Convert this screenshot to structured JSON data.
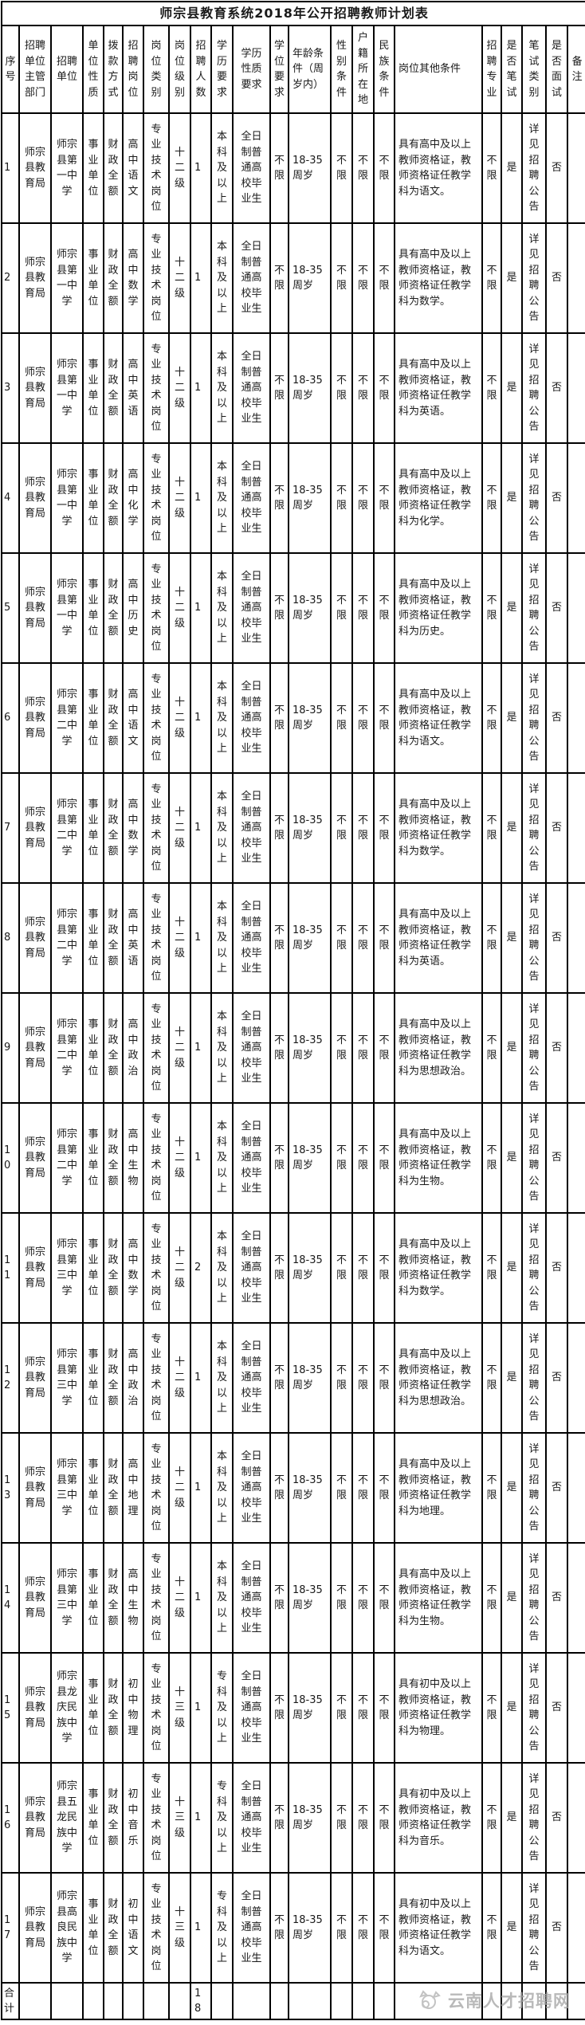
{
  "title": "师宗县教育系统2018年公开招聘教师计划表",
  "columns": [
    "序号",
    "招聘单位主管部门",
    "招聘单位",
    "单位性质",
    "拨款方式",
    "招聘岗位",
    "岗位类别",
    "岗位级别",
    "招聘人数",
    "学历要求",
    "学历性质要求",
    "学位要求",
    "年龄条件（周岁内）",
    "性别条件",
    "户籍所在地",
    "民族条件",
    "岗位其他条件",
    "招聘专业",
    "是否笔试",
    "笔试类别",
    "是否面试",
    "备注"
  ],
  "rows": [
    [
      "1",
      "师宗县教育局",
      "师宗县第一中学",
      "事业单位",
      "财政全额",
      "高中语文",
      "专业技术岗位",
      "十二级",
      "1",
      "本科及以上",
      "全日制普通高校毕业生",
      "不限",
      "18-35周岁",
      "不限",
      "不限",
      "不限",
      "具有高中及以上教师资格证，教师资格证任教学科为语文。",
      "不限",
      "是",
      "详见招聘公告",
      "否",
      ""
    ],
    [
      "2",
      "师宗县教育局",
      "师宗县第一中学",
      "事业单位",
      "财政全额",
      "高中数学",
      "专业技术岗位",
      "十二级",
      "1",
      "本科及以上",
      "全日制普通高校毕业生",
      "不限",
      "18-35周岁",
      "不限",
      "不限",
      "不限",
      "具有高中及以上教师资格证，教师资格证任教学科为数学。",
      "不限",
      "是",
      "详见招聘公告",
      "否",
      ""
    ],
    [
      "3",
      "师宗县教育局",
      "师宗县第一中学",
      "事业单位",
      "财政全额",
      "高中英语",
      "专业技术岗位",
      "十二级",
      "1",
      "本科及以上",
      "全日制普通高校毕业生",
      "不限",
      "18-35周岁",
      "不限",
      "不限",
      "不限",
      "具有高中及以上教师资格证，教师资格证任教学科为英语。",
      "不限",
      "是",
      "详见招聘公告",
      "否",
      ""
    ],
    [
      "4",
      "师宗县教育局",
      "师宗县第一中学",
      "事业单位",
      "财政全额",
      "高中化学",
      "专业技术岗位",
      "十二级",
      "1",
      "本科及以上",
      "全日制普通高校毕业生",
      "不限",
      "18-35周岁",
      "不限",
      "不限",
      "不限",
      "具有高中及以上教师资格证，教师资格证任教学科为化学。",
      "不限",
      "是",
      "详见招聘公告",
      "否",
      ""
    ],
    [
      "5",
      "师宗县教育局",
      "师宗县第一中学",
      "事业单位",
      "财政全额",
      "高中历史",
      "专业技术岗位",
      "十二级",
      "1",
      "本科及以上",
      "全日制普通高校毕业生",
      "不限",
      "18-35周岁",
      "不限",
      "不限",
      "不限",
      "具有高中及以上教师资格证，教师资格证任教学科为历史。",
      "不限",
      "是",
      "详见招聘公告",
      "否",
      ""
    ],
    [
      "6",
      "师宗县教育局",
      "师宗县第二中学",
      "事业单位",
      "财政全额",
      "高中语文",
      "专业技术岗位",
      "十二级",
      "1",
      "本科及以上",
      "全日制普通高校毕业生",
      "不限",
      "18-35周岁",
      "不限",
      "不限",
      "不限",
      "具有高中及以上教师资格证，教师资格证任教学科为语文。",
      "不限",
      "是",
      "详见招聘公告",
      "否",
      ""
    ],
    [
      "7",
      "师宗县教育局",
      "师宗县第二中学",
      "事业单位",
      "财政全额",
      "高中数学",
      "专业技术岗位",
      "十二级",
      "1",
      "本科及以上",
      "全日制普通高校毕业生",
      "不限",
      "18-35周岁",
      "不限",
      "不限",
      "不限",
      "具有高中及以上教师资格证，教师资格证任教学科为数学。",
      "不限",
      "是",
      "详见招聘公告",
      "否",
      ""
    ],
    [
      "8",
      "师宗县教育局",
      "师宗县第二中学",
      "事业单位",
      "财政全额",
      "高中英语",
      "专业技术岗位",
      "十二级",
      "1",
      "本科及以上",
      "全日制普通高校毕业生",
      "不限",
      "18-35周岁",
      "不限",
      "不限",
      "不限",
      "具有高中及以上教师资格证，教师资格证任教学科为英语。",
      "不限",
      "是",
      "详见招聘公告",
      "否",
      ""
    ],
    [
      "9",
      "师宗县教育局",
      "师宗县第二中学",
      "事业单位",
      "财政全额",
      "高中政治",
      "专业技术岗位",
      "十二级",
      "1",
      "本科及以上",
      "全日制普通高校毕业生",
      "不限",
      "18-35周岁",
      "不限",
      "不限",
      "不限",
      "具有高中及以上教师资格证，教师资格证任教学科为思想政治。",
      "不限",
      "是",
      "详见招聘公告",
      "否",
      ""
    ],
    [
      "10",
      "师宗县教育局",
      "师宗县第二中学",
      "事业单位",
      "财政全额",
      "高中生物",
      "专业技术岗位",
      "十二级",
      "1",
      "本科及以上",
      "全日制普通高校毕业生",
      "不限",
      "18-35周岁",
      "不限",
      "不限",
      "不限",
      "具有高中及以上教师资格证，教师资格证任教学科为生物。",
      "不限",
      "是",
      "详见招聘公告",
      "否",
      ""
    ],
    [
      "11",
      "师宗县教育局",
      "师宗县第三中学",
      "事业单位",
      "财政全额",
      "高中数学",
      "专业技术岗位",
      "十二级",
      "2",
      "本科及以上",
      "全日制普通高校毕业生",
      "不限",
      "18-35周岁",
      "不限",
      "不限",
      "不限",
      "具有高中及以上教师资格证，教师资格证任教学科为数学。",
      "不限",
      "是",
      "详见招聘公告",
      "否",
      ""
    ],
    [
      "12",
      "师宗县教育局",
      "师宗县第三中学",
      "事业单位",
      "财政全额",
      "高中政治",
      "专业技术岗位",
      "十二级",
      "1",
      "本科及以上",
      "全日制普通高校毕业生",
      "不限",
      "18-35周岁",
      "不限",
      "不限",
      "不限",
      "具有高中及以上教师资格证，教师资格证任教学科为思想政治。",
      "不限",
      "是",
      "详见招聘公告",
      "否",
      ""
    ],
    [
      "13",
      "师宗县教育局",
      "师宗县第三中学",
      "事业单位",
      "财政全额",
      "高中地理",
      "专业技术岗位",
      "十二级",
      "1",
      "本科及以上",
      "全日制普通高校毕业生",
      "不限",
      "18-35周岁",
      "不限",
      "不限",
      "不限",
      "具有高中及以上教师资格证，教师资格证任教学科为地理。",
      "不限",
      "是",
      "详见招聘公告",
      "否",
      ""
    ],
    [
      "14",
      "师宗县教育局",
      "师宗县第三中学",
      "事业单位",
      "财政全额",
      "高中生物",
      "专业技术岗位",
      "十二级",
      "1",
      "本科及以上",
      "全日制普通高校毕业生",
      "不限",
      "18-35周岁",
      "不限",
      "不限",
      "不限",
      "具有高中及以上教师资格证，教师资格证任教学科为生物。",
      "不限",
      "是",
      "详见招聘公告",
      "否",
      ""
    ],
    [
      "15",
      "师宗县教育局",
      "师宗县龙庆民族中学",
      "事业单位",
      "财政全额",
      "初中物理",
      "专业技术岗位",
      "十三级",
      "1",
      "专科及以上",
      "全日制普通高校毕业生",
      "不限",
      "18-35周岁",
      "不限",
      "不限",
      "不限",
      "具有初中及以上教师资格证，教师资格证任教学科为物理。",
      "不限",
      "是",
      "详见招聘公告",
      "否",
      ""
    ],
    [
      "16",
      "师宗县教育局",
      "师宗县五龙民族中学",
      "事业单位",
      "财政全额",
      "初中音乐",
      "专业技术岗位",
      "十三级",
      "1",
      "专科及以上",
      "全日制普通高校毕业生",
      "不限",
      "18-35周岁",
      "不限",
      "不限",
      "不限",
      "具有初中及以上教师资格证，教师资格证任教学科为音乐。",
      "不限",
      "是",
      "详见招聘公告",
      "否",
      ""
    ],
    [
      "17",
      "师宗县教育局",
      "师宗县高良民族中学",
      "事业单位",
      "财政全额",
      "初中语文",
      "专业技术岗位",
      "十三级",
      "1",
      "专科及以上",
      "全日制普通高校毕业生",
      "不限",
      "18-35周岁",
      "不限",
      "不限",
      "不限",
      "具有初中及以上教师资格证，教师资格证任教学科为语文。",
      "不限",
      "是",
      "详见招聘公告",
      "否",
      ""
    ]
  ],
  "footer": {
    "cells": [
      "合计",
      "",
      "",
      "",
      "",
      "",
      "",
      "",
      "18",
      "",
      "",
      "",
      "",
      "",
      "",
      "",
      "",
      "",
      "",
      "",
      "",
      ""
    ]
  },
  "watermark": {
    "text": "云南人才招聘网"
  },
  "colors": {
    "border": "#000000",
    "text": "#1a1a1a",
    "watermark": "#a8a8a8"
  }
}
